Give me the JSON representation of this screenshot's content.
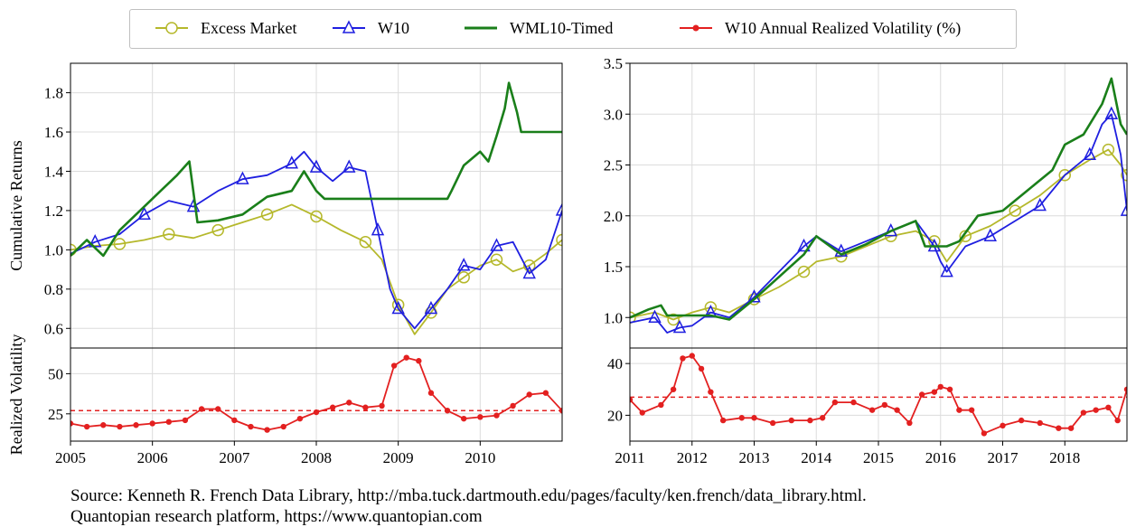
{
  "legend": [
    {
      "label": "Excess Market",
      "color": "#b5b82b",
      "marker": "circle"
    },
    {
      "label": "W10",
      "color": "#1f1fe0",
      "marker": "triangle"
    },
    {
      "label": "WML10-Timed",
      "color": "#1a7f1a",
      "marker": "none"
    },
    {
      "label": "W10 Annual Realized Volatility (%)",
      "color": "#e32020",
      "marker": "dot"
    }
  ],
  "source_line1": "Source: Kenneth R. French Data Library, http://mba.tuck.dartmouth.edu/pages/faculty/ken.french/data_library.html.",
  "source_line2": "Quantopian research platform, https://www.quantopian.com",
  "chart_data": [
    {
      "panel": "top-left",
      "type": "line",
      "ylabel": "Cumulative Returns",
      "xlim": [
        2005,
        2011
      ],
      "ylim": [
        0.5,
        1.95
      ],
      "grid": true,
      "yticks": [
        0.6,
        0.8,
        1.0,
        1.2,
        1.4,
        1.6,
        1.8
      ],
      "ytick_labels": [
        "0.6",
        "0.8",
        "1.0",
        "1.2",
        "1.4",
        "1.6",
        "1.8"
      ],
      "series": [
        {
          "name": "Excess Market",
          "x": [
            2005.0,
            2005.3,
            2005.6,
            2005.9,
            2006.2,
            2006.5,
            2006.8,
            2007.1,
            2007.4,
            2007.7,
            2008.0,
            2008.3,
            2008.6,
            2008.8,
            2009.0,
            2009.2,
            2009.4,
            2009.6,
            2009.8,
            2010.0,
            2010.2,
            2010.4,
            2010.6,
            2010.8,
            2011.0
          ],
          "y": [
            1.0,
            1.02,
            1.03,
            1.05,
            1.08,
            1.06,
            1.1,
            1.14,
            1.18,
            1.23,
            1.17,
            1.1,
            1.04,
            0.95,
            0.72,
            0.57,
            0.68,
            0.8,
            0.86,
            0.92,
            0.95,
            0.89,
            0.92,
            0.98,
            1.05
          ]
        },
        {
          "name": "W10",
          "x": [
            2005.0,
            2005.3,
            2005.6,
            2005.9,
            2006.2,
            2006.5,
            2006.8,
            2007.1,
            2007.4,
            2007.7,
            2007.85,
            2008.0,
            2008.2,
            2008.4,
            2008.6,
            2008.75,
            2008.9,
            2009.0,
            2009.2,
            2009.4,
            2009.6,
            2009.8,
            2010.0,
            2010.2,
            2010.4,
            2010.6,
            2010.8,
            2011.0
          ],
          "y": [
            0.98,
            1.04,
            1.08,
            1.18,
            1.25,
            1.22,
            1.3,
            1.36,
            1.38,
            1.44,
            1.5,
            1.42,
            1.35,
            1.42,
            1.4,
            1.1,
            0.8,
            0.7,
            0.6,
            0.7,
            0.8,
            0.92,
            0.9,
            1.02,
            1.04,
            0.88,
            0.95,
            1.2
          ]
        },
        {
          "name": "WML10-Timed",
          "x": [
            2005.0,
            2005.2,
            2005.4,
            2005.6,
            2005.9,
            2006.1,
            2006.3,
            2006.45,
            2006.55,
            2006.8,
            2007.1,
            2007.4,
            2007.7,
            2007.85,
            2008.0,
            2008.1,
            2008.3,
            2008.5,
            2008.8,
            2009.0,
            2009.3,
            2009.6,
            2009.65,
            2009.8,
            2010.0,
            2010.1,
            2010.2,
            2010.3,
            2010.35,
            2010.45,
            2010.5,
            2010.8,
            2011.0
          ],
          "y": [
            0.97,
            1.05,
            0.97,
            1.1,
            1.22,
            1.3,
            1.38,
            1.45,
            1.14,
            1.15,
            1.18,
            1.27,
            1.3,
            1.4,
            1.3,
            1.26,
            1.26,
            1.26,
            1.26,
            1.26,
            1.26,
            1.26,
            1.3,
            1.43,
            1.5,
            1.45,
            1.58,
            1.72,
            1.85,
            1.7,
            1.6,
            1.6,
            1.6
          ]
        }
      ]
    },
    {
      "panel": "bottom-left",
      "type": "line",
      "ylabel": "Realized Volatility",
      "xlim": [
        2005,
        2011
      ],
      "ylim": [
        8,
        66
      ],
      "grid": true,
      "yticks": [
        25,
        50
      ],
      "ytick_labels": [
        "25",
        "50"
      ],
      "xticks": [
        2005,
        2006,
        2007,
        2008,
        2009,
        2010
      ],
      "xtick_labels": [
        "2005",
        "2006",
        "2007",
        "2008",
        "2009",
        "2010"
      ],
      "reference_line": 27,
      "series": [
        {
          "name": "W10 Annual Realized Volatility (%)",
          "x": [
            2005.0,
            2005.2,
            2005.4,
            2005.6,
            2005.8,
            2006.0,
            2006.2,
            2006.4,
            2006.6,
            2006.8,
            2007.0,
            2007.2,
            2007.4,
            2007.6,
            2007.8,
            2008.0,
            2008.2,
            2008.4,
            2008.6,
            2008.8,
            2008.95,
            2009.1,
            2009.25,
            2009.4,
            2009.6,
            2009.8,
            2010.0,
            2010.2,
            2010.4,
            2010.6,
            2010.8,
            2011.0
          ],
          "y": [
            19,
            17,
            18,
            17,
            18,
            19,
            20,
            21,
            28,
            28,
            21,
            17,
            15,
            17,
            22,
            26,
            29,
            32,
            29,
            30,
            55,
            60,
            58,
            38,
            27,
            22,
            23,
            24,
            30,
            37,
            38,
            27
          ]
        }
      ]
    },
    {
      "panel": "top-right",
      "type": "line",
      "xlim": [
        2011,
        2019
      ],
      "ylim": [
        0.7,
        3.5
      ],
      "grid": true,
      "yticks": [
        1.0,
        1.5,
        2.0,
        2.5,
        3.0,
        3.5
      ],
      "ytick_labels": [
        "1.0",
        "1.5",
        "2.0",
        "2.5",
        "3.0",
        "3.5"
      ],
      "series": [
        {
          "name": "Excess Market",
          "x": [
            2011.0,
            2011.4,
            2011.7,
            2012.0,
            2012.3,
            2012.6,
            2013.0,
            2013.4,
            2013.8,
            2014.0,
            2014.4,
            2014.8,
            2015.2,
            2015.6,
            2015.9,
            2016.1,
            2016.4,
            2016.8,
            2017.2,
            2017.6,
            2018.0,
            2018.4,
            2018.7,
            2018.9,
            2019.0
          ],
          "y": [
            1.0,
            1.05,
            0.98,
            1.05,
            1.1,
            1.05,
            1.18,
            1.3,
            1.45,
            1.55,
            1.6,
            1.7,
            1.8,
            1.85,
            1.75,
            1.55,
            1.8,
            1.9,
            2.05,
            2.2,
            2.4,
            2.55,
            2.65,
            2.5,
            2.4
          ]
        },
        {
          "name": "W10",
          "x": [
            2011.0,
            2011.4,
            2011.6,
            2011.8,
            2012.0,
            2012.3,
            2012.6,
            2013.0,
            2013.4,
            2013.8,
            2014.0,
            2014.4,
            2014.8,
            2015.2,
            2015.6,
            2015.9,
            2016.0,
            2016.1,
            2016.4,
            2016.8,
            2017.2,
            2017.6,
            2018.0,
            2018.4,
            2018.6,
            2018.75,
            2018.9,
            2019.0
          ],
          "y": [
            0.95,
            1.0,
            0.85,
            0.9,
            0.92,
            1.05,
            1.0,
            1.2,
            1.45,
            1.7,
            1.8,
            1.65,
            1.75,
            1.85,
            1.95,
            1.7,
            1.55,
            1.45,
            1.7,
            1.8,
            1.95,
            2.1,
            2.4,
            2.6,
            2.9,
            3.0,
            2.6,
            2.05
          ]
        },
        {
          "name": "WML10-Timed",
          "x": [
            2011.0,
            2011.3,
            2011.5,
            2011.6,
            2011.9,
            2012.3,
            2012.6,
            2013.0,
            2013.4,
            2013.8,
            2014.0,
            2014.4,
            2014.8,
            2015.2,
            2015.6,
            2015.75,
            2016.1,
            2016.3,
            2016.6,
            2017.0,
            2017.4,
            2017.8,
            2018.0,
            2018.3,
            2018.6,
            2018.75,
            2018.9,
            2019.0
          ],
          "y": [
            1.0,
            1.08,
            1.12,
            1.02,
            1.02,
            1.02,
            0.98,
            1.18,
            1.4,
            1.62,
            1.8,
            1.62,
            1.72,
            1.85,
            1.95,
            1.7,
            1.7,
            1.75,
            2.0,
            2.05,
            2.25,
            2.45,
            2.7,
            2.8,
            3.1,
            3.35,
            2.9,
            2.8
          ]
        }
      ]
    },
    {
      "panel": "bottom-right",
      "type": "line",
      "xlim": [
        2011,
        2019
      ],
      "ylim": [
        10,
        46
      ],
      "grid": true,
      "yticks": [
        20,
        40
      ],
      "ytick_labels": [
        "20",
        "40"
      ],
      "xticks": [
        2011,
        2012,
        2013,
        2014,
        2015,
        2016,
        2017,
        2018
      ],
      "xtick_labels": [
        "2011",
        "2012",
        "2013",
        "2014",
        "2015",
        "2016",
        "2017",
        "2018"
      ],
      "reference_line": 27,
      "series": [
        {
          "name": "W10 Annual Realized Volatility (%)",
          "x": [
            2011.0,
            2011.2,
            2011.5,
            2011.7,
            2011.85,
            2012.0,
            2012.15,
            2012.3,
            2012.5,
            2012.8,
            2013.0,
            2013.3,
            2013.6,
            2013.9,
            2014.1,
            2014.3,
            2014.6,
            2014.9,
            2015.1,
            2015.3,
            2015.5,
            2015.7,
            2015.9,
            2016.0,
            2016.15,
            2016.3,
            2016.5,
            2016.7,
            2017.0,
            2017.3,
            2017.6,
            2017.9,
            2018.1,
            2018.3,
            2018.5,
            2018.7,
            2018.85,
            2019.0
          ],
          "y": [
            26,
            21,
            24,
            30,
            42,
            43,
            38,
            29,
            18,
            19,
            19,
            17,
            18,
            18,
            19,
            25,
            25,
            22,
            24,
            22,
            17,
            28,
            29,
            31,
            30,
            22,
            22,
            13,
            16,
            18,
            17,
            15,
            15,
            21,
            22,
            23,
            18,
            30
          ]
        }
      ]
    }
  ]
}
